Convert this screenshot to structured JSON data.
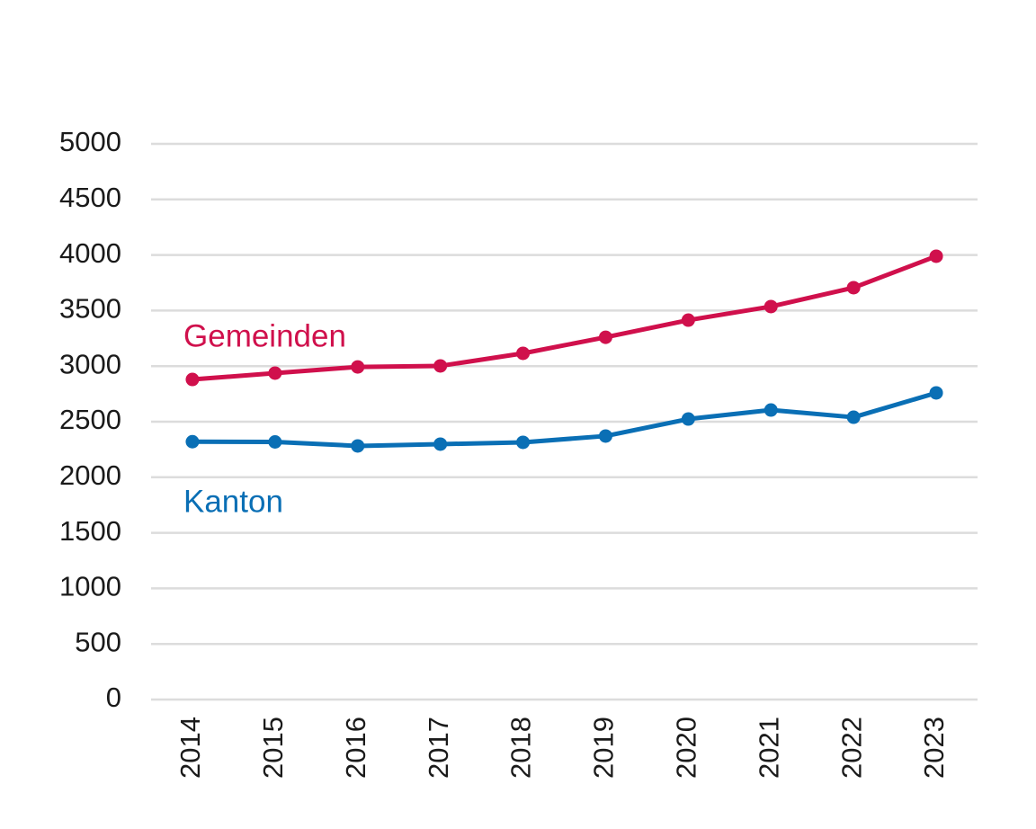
{
  "chart_data": {
    "type": "line",
    "x": [
      "2014",
      "2015",
      "2016",
      "2017",
      "2018",
      "2019",
      "2020",
      "2021",
      "2022",
      "2023"
    ],
    "series": [
      {
        "name": "Gemeinden",
        "color": "#d0104c",
        "values": [
          2880,
          2937,
          2993,
          3002,
          3115,
          3260,
          3414,
          3536,
          3706,
          3989
        ]
      },
      {
        "name": "Kanton",
        "color": "#0a6fb5",
        "values": [
          2320,
          2318,
          2282,
          2298,
          2314,
          2371,
          2524,
          2605,
          2540,
          2759
        ]
      }
    ],
    "ylim": [
      0,
      5000
    ],
    "yticks": [
      0,
      500,
      1000,
      1500,
      2000,
      2500,
      3000,
      3500,
      4000,
      4500,
      5000
    ],
    "grid": true
  }
}
